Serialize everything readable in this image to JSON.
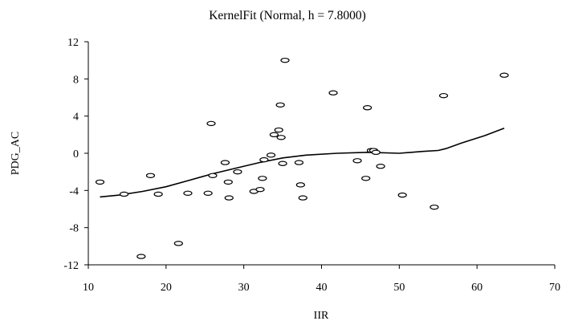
{
  "chart_data": {
    "type": "scatter",
    "title": "KernelFit (Normal, h = 7.8000)",
    "xlabel": "IIR",
    "ylabel": "PDG_AC",
    "xlim": [
      10,
      70
    ],
    "ylim": [
      -12,
      12
    ],
    "xticks": [
      "10",
      "20",
      "30",
      "40",
      "50",
      "60",
      "70"
    ],
    "yticks": [
      "12",
      "8",
      "4",
      "0",
      "-4",
      "-8",
      "-12"
    ],
    "grid": false,
    "legend": "none",
    "series": [
      {
        "kind": "scatter",
        "marker": "open-ellipse",
        "points": [
          [
            11.5,
            -3.1
          ],
          [
            14.6,
            -4.4
          ],
          [
            16.8,
            -11.1
          ],
          [
            18.0,
            -2.4
          ],
          [
            19.0,
            -4.4
          ],
          [
            21.6,
            -9.7
          ],
          [
            22.8,
            -4.3
          ],
          [
            25.4,
            -4.3
          ],
          [
            25.8,
            3.2
          ],
          [
            26.0,
            -2.4
          ],
          [
            27.6,
            -1.0
          ],
          [
            28.0,
            -3.1
          ],
          [
            28.1,
            -4.8
          ],
          [
            29.2,
            -2.0
          ],
          [
            31.3,
            -4.1
          ],
          [
            32.1,
            -3.9
          ],
          [
            32.4,
            -2.7
          ],
          [
            32.6,
            -0.7
          ],
          [
            33.5,
            -0.2
          ],
          [
            33.9,
            2.0
          ],
          [
            34.5,
            2.5
          ],
          [
            34.7,
            5.2
          ],
          [
            34.8,
            1.7
          ],
          [
            35.0,
            -1.1
          ],
          [
            35.3,
            10.0
          ],
          [
            37.1,
            -1.0
          ],
          [
            37.3,
            -3.4
          ],
          [
            37.6,
            -4.8
          ],
          [
            41.5,
            6.5
          ],
          [
            44.6,
            -0.8
          ],
          [
            45.7,
            -2.7
          ],
          [
            45.9,
            4.9
          ],
          [
            46.4,
            0.3
          ],
          [
            46.7,
            0.3
          ],
          [
            47.0,
            0.1
          ],
          [
            47.6,
            -1.4
          ],
          [
            50.4,
            -4.5
          ],
          [
            54.5,
            -5.8
          ],
          [
            55.7,
            6.2
          ],
          [
            63.5,
            8.4
          ]
        ]
      },
      {
        "kind": "line",
        "points": [
          [
            11.5,
            -4.7
          ],
          [
            14.0,
            -4.5
          ],
          [
            17.0,
            -4.1
          ],
          [
            20.0,
            -3.6
          ],
          [
            23.0,
            -2.9
          ],
          [
            26.0,
            -2.2
          ],
          [
            29.0,
            -1.6
          ],
          [
            32.0,
            -1.0
          ],
          [
            35.0,
            -0.5
          ],
          [
            38.0,
            -0.2
          ],
          [
            42.0,
            0.0
          ],
          [
            46.0,
            0.1
          ],
          [
            50.0,
            0.0
          ],
          [
            53.0,
            0.2
          ],
          [
            55.0,
            0.3
          ],
          [
            56.0,
            0.5
          ],
          [
            58.0,
            1.1
          ],
          [
            61.0,
            1.9
          ],
          [
            63.5,
            2.7
          ]
        ]
      }
    ]
  }
}
